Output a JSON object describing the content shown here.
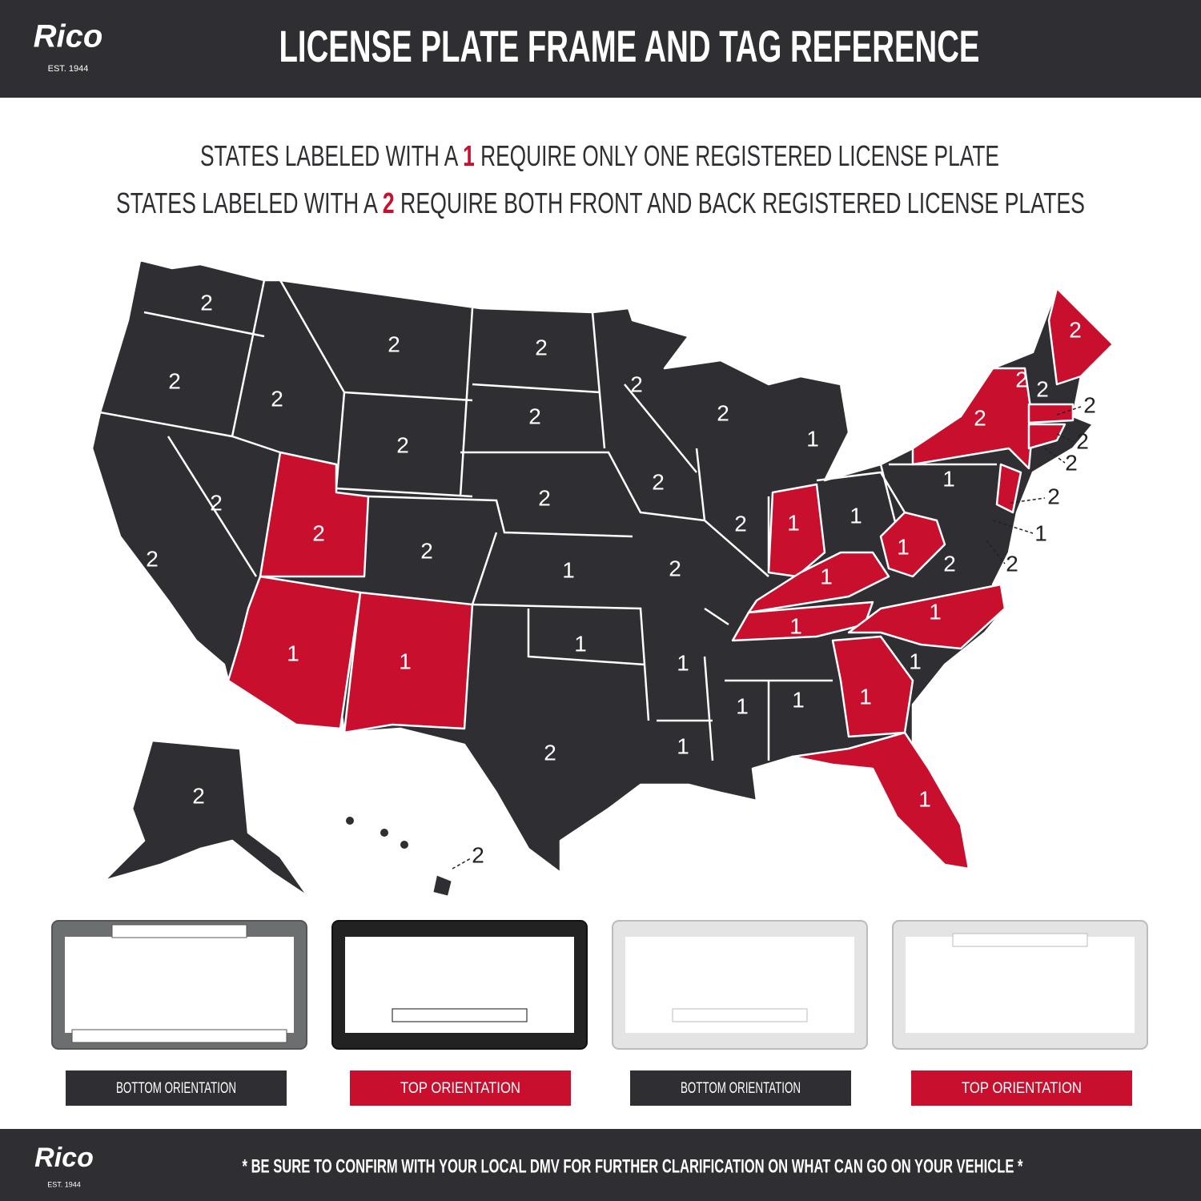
{
  "header": {
    "logo": "Rico",
    "logo_sub": "EST. 1944",
    "title": "LICENSE PLATE FRAME AND TAG REFERENCE"
  },
  "intro": {
    "line1": [
      "STATES LABELED WITH A ",
      "1",
      " REQUIRE ONLY ONE REGISTERED LICENSE PLATE"
    ],
    "line2": [
      "STATES LABELED WITH A ",
      "2",
      " REQUIRE BOTH FRONT AND BACK REGISTERED LICENSE PLATES"
    ]
  },
  "map": {
    "labels": [
      2,
      2,
      2,
      2,
      2,
      2,
      2,
      1,
      2,
      2,
      2,
      2,
      2,
      2,
      2,
      2,
      2,
      1,
      1,
      1,
      2,
      2,
      2,
      2,
      2,
      2,
      2,
      2,
      1,
      2,
      2,
      1,
      1,
      1,
      2,
      1,
      1,
      1,
      1,
      1,
      1,
      1,
      1,
      1,
      1,
      1,
      2,
      1,
      2,
      2
    ]
  },
  "frames": [
    {
      "caption": "BOTTOM ORIENTATION"
    },
    {
      "caption": "TOP ORIENTATION"
    },
    {
      "caption": "BOTTOM ORIENTATION"
    },
    {
      "caption": "TOP ORIENTATION"
    }
  ],
  "footer": {
    "logo": "Rico",
    "logo_sub": "EST. 1944",
    "note": "* BE SURE TO CONFIRM WITH YOUR LOCAL DMV FOR FURTHER CLARIFICATION ON WHAT CAN GO ON YOUR VEHICLE *"
  }
}
